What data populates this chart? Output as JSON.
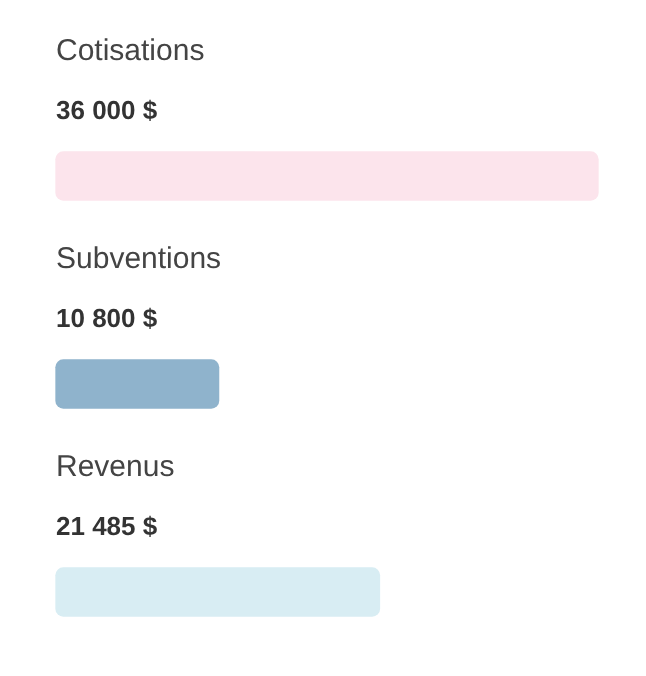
{
  "chart_data": {
    "type": "bar",
    "orientation": "horizontal",
    "categories": [
      "Cotisations",
      "Subventions",
      "Revenus"
    ],
    "values": [
      36000,
      10800,
      21485
    ],
    "value_labels": [
      "36 000 $",
      "10 800 $",
      "21 485 $"
    ],
    "colors": [
      "#fce4ec",
      "#8fb3cc",
      "#d8edf3"
    ],
    "legend": false
  }
}
